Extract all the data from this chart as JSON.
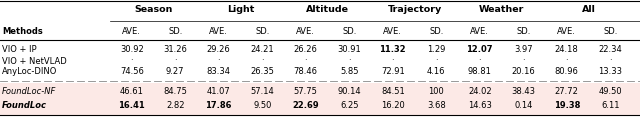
{
  "cat_names": [
    "Season",
    "Light",
    "Altitude",
    "Trajectory",
    "Weather",
    "All"
  ],
  "col_headers": [
    "AVE.",
    "SD.",
    "AVE.",
    "SD.",
    "AVE.",
    "SD.",
    "AVE.",
    "SD.",
    "AVE.",
    "SD.",
    "AVE.",
    "SD."
  ],
  "methods_top": [
    "VIO + IP",
    "VIO + NetVLAD",
    "AnyLoc-DINO"
  ],
  "data_top": [
    [
      "30.92",
      "31.26",
      "29.26",
      "24.21",
      "26.26",
      "30.91",
      "11.32",
      "1.29",
      "12.07",
      "3.97",
      "24.18",
      "22.34"
    ],
    [
      "·",
      "·",
      "·",
      "·",
      "·",
      "·",
      "·",
      "·",
      "·",
      "·",
      "·",
      "·"
    ],
    [
      "74.56",
      "9.27",
      "83.34",
      "26.35",
      "78.46",
      "5.85",
      "72.91",
      "4.16",
      "98.81",
      "20.16",
      "80.96",
      "13.33"
    ]
  ],
  "bold_top": [
    [
      6,
      8
    ],
    [],
    []
  ],
  "methods_bot": [
    "FoundLoc-NF",
    "FoundLoc"
  ],
  "data_bot": [
    [
      "46.61",
      "84.75",
      "41.07",
      "57.14",
      "57.75",
      "90.14",
      "84.51",
      "100",
      "24.02",
      "38.43",
      "27.72",
      "49.50"
    ],
    [
      "16.41",
      "2.82",
      "17.86",
      "9.50",
      "22.69",
      "6.25",
      "16.20",
      "3.68",
      "14.63",
      "0.14",
      "19.38",
      "6.11"
    ]
  ],
  "bold_bot": [
    [],
    [
      0,
      2,
      4,
      10
    ]
  ],
  "italic_bot": [
    true,
    true
  ],
  "fontweight_bot_method": [
    "normal",
    "bold"
  ],
  "bg_color": "#fce9e6",
  "line_color": "#000000",
  "dash_color": "#888888",
  "fs_cat": 6.8,
  "fs_col": 6.0,
  "fs_body": 6.0,
  "fs_method": 6.0
}
